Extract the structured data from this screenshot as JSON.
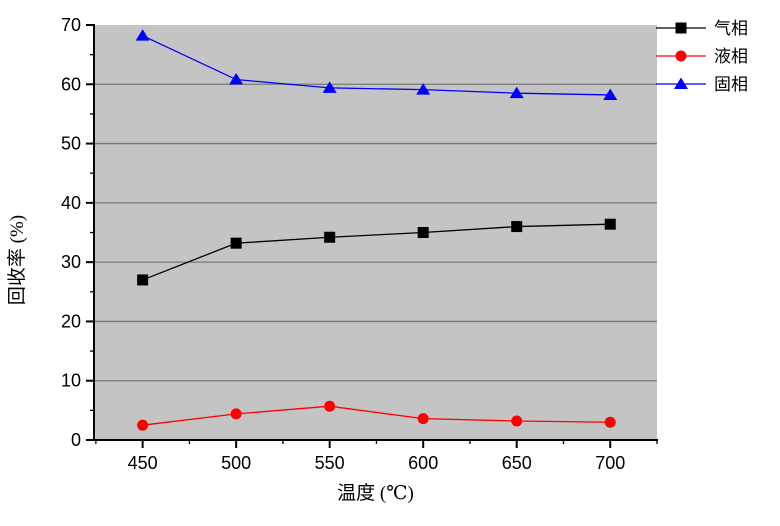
{
  "chart_data": {
    "type": "line",
    "title": "",
    "xlabel": "温度 (℃)",
    "ylabel": "回收率 (%)",
    "x": [
      450,
      500,
      550,
      600,
      650,
      700
    ],
    "series": [
      {
        "name": "气相",
        "color": "#000000",
        "marker": "square",
        "values": [
          27.0,
          33.2,
          34.2,
          35.0,
          36.0,
          36.4
        ]
      },
      {
        "name": "液相",
        "color": "#ff0000",
        "marker": "circle",
        "values": [
          2.5,
          4.4,
          5.7,
          3.6,
          3.2,
          3.0
        ]
      },
      {
        "name": "固相",
        "color": "#0000ff",
        "marker": "triangle",
        "values": [
          68.2,
          60.8,
          59.4,
          59.1,
          58.5,
          58.2
        ]
      }
    ],
    "xlim": [
      424,
      725
    ],
    "ylim": [
      0,
      70
    ],
    "x_major_ticks": [
      450,
      500,
      550,
      600,
      650,
      700
    ],
    "x_minor_step": 25,
    "y_major_step": 10,
    "y_minor_step": 5,
    "grid": "horizontal-major",
    "legend_position": "outside-top-right",
    "plot_bg_color": "#c4c4c4",
    "grid_color": "#787878",
    "axis_color": "#000000",
    "tick_label_color": "#000000"
  }
}
